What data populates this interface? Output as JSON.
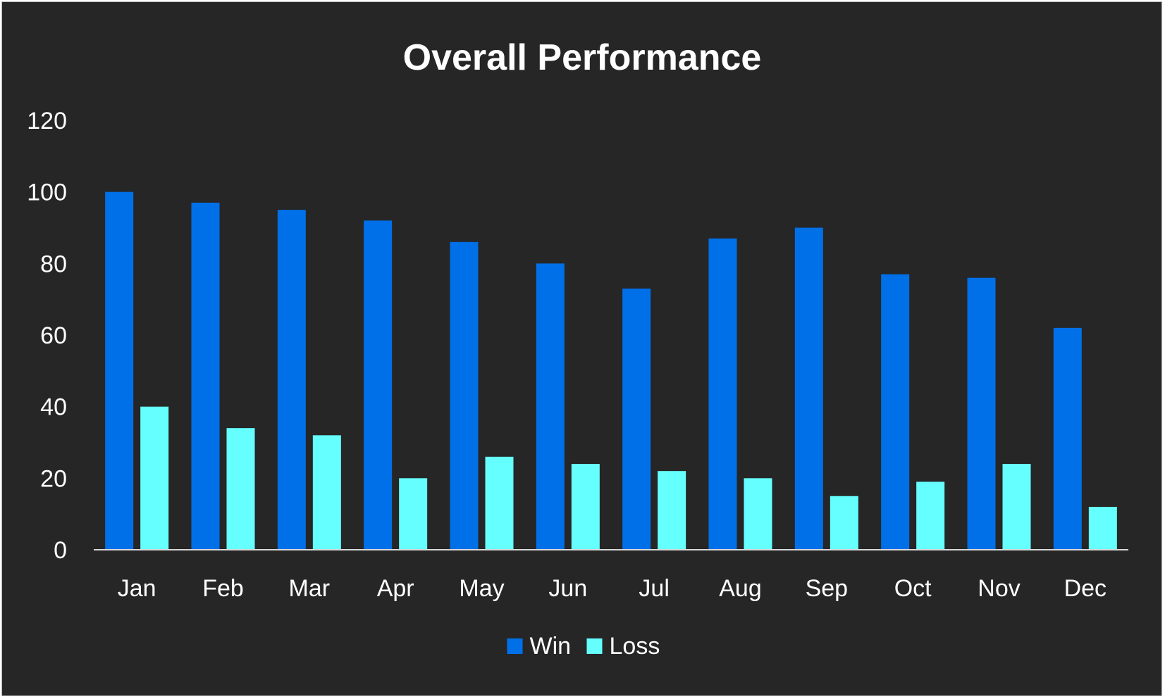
{
  "chart_data": {
    "type": "bar",
    "title": "Overall Performance",
    "xlabel": "",
    "ylabel": "",
    "categories": [
      "Jan",
      "Feb",
      "Mar",
      "Apr",
      "May",
      "Jun",
      "Jul",
      "Aug",
      "Sep",
      "Oct",
      "Nov",
      "Dec"
    ],
    "series": [
      {
        "name": "Win",
        "color": "#0070E8",
        "values": [
          100,
          97,
          95,
          92,
          86,
          80,
          73,
          87,
          90,
          77,
          76,
          62
        ]
      },
      {
        "name": "Loss",
        "color": "#66FFFF",
        "values": [
          40,
          34,
          32,
          20,
          26,
          24,
          22,
          20,
          15,
          19,
          24,
          12
        ]
      }
    ],
    "ylim": [
      0,
      120
    ],
    "yticks": [
      0,
      20,
      40,
      60,
      80,
      100,
      120
    ],
    "grid": false,
    "legend_position": "bottom",
    "background_color": "#262626",
    "text_color": "#FFFFFF"
  }
}
